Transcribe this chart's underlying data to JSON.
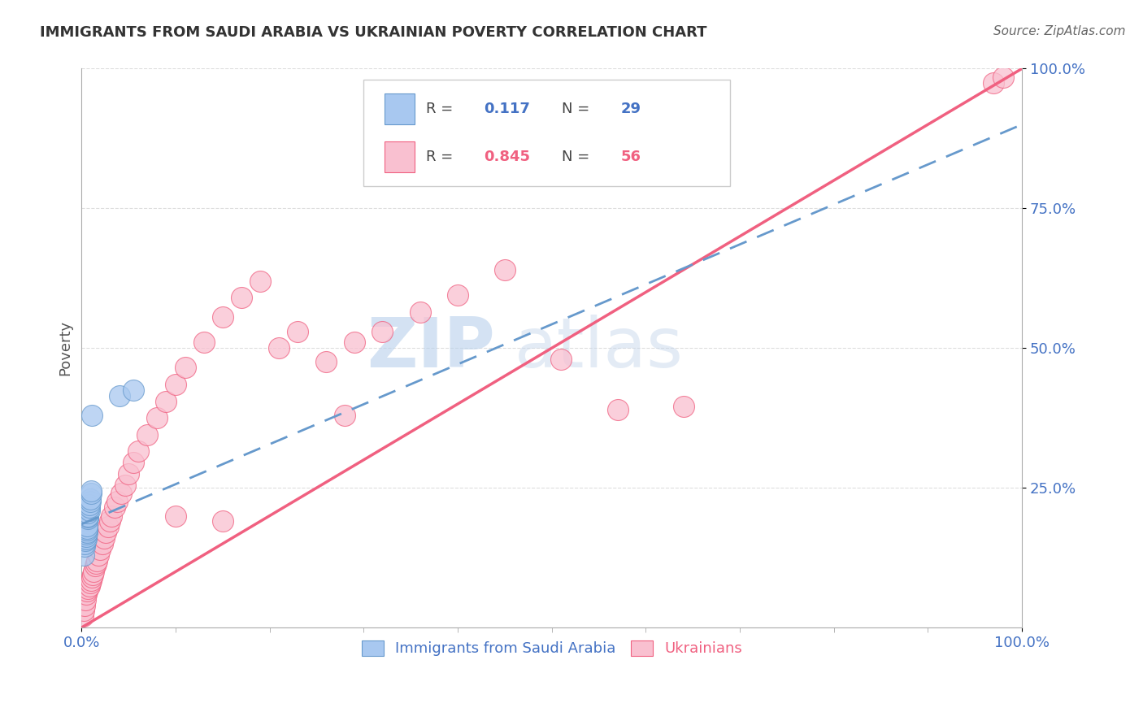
{
  "title": "IMMIGRANTS FROM SAUDI ARABIA VS UKRAINIAN POVERTY CORRELATION CHART",
  "source": "Source: ZipAtlas.com",
  "ylabel": "Poverty",
  "watermark_zip": "ZIP",
  "watermark_atlas": "atlas",
  "legend_r1_val": "0.117",
  "legend_n1_val": "29",
  "legend_r2_val": "0.845",
  "legend_n2_val": "56",
  "series1_label": "Immigrants from Saudi Arabia",
  "series2_label": "Ukrainians",
  "color1": "#A8C8F0",
  "color2": "#F9C0D0",
  "line1_color": "#6699CC",
  "line2_color": "#F06080",
  "background_color": "#FFFFFF",
  "grid_color": "#DDDDDD",
  "tick_color": "#4472C4",
  "title_color": "#333333",
  "source_color": "#666666",
  "ylabel_color": "#555555",
  "xlim": [
    0,
    1
  ],
  "ylim": [
    0,
    1
  ],
  "saudi_x": [
    0.002,
    0.003,
    0.003,
    0.004,
    0.004,
    0.004,
    0.005,
    0.005,
    0.005,
    0.005,
    0.005,
    0.006,
    0.006,
    0.006,
    0.006,
    0.007,
    0.007,
    0.007,
    0.007,
    0.008,
    0.008,
    0.008,
    0.009,
    0.009,
    0.01,
    0.01,
    0.011,
    0.04,
    0.055
  ],
  "saudi_y": [
    0.13,
    0.145,
    0.15,
    0.16,
    0.155,
    0.165,
    0.158,
    0.163,
    0.168,
    0.172,
    0.175,
    0.17,
    0.175,
    0.178,
    0.182,
    0.195,
    0.198,
    0.2,
    0.205,
    0.21,
    0.215,
    0.22,
    0.225,
    0.23,
    0.24,
    0.245,
    0.38,
    0.415,
    0.425
  ],
  "ukraine_x": [
    0.001,
    0.002,
    0.003,
    0.004,
    0.005,
    0.006,
    0.007,
    0.008,
    0.009,
    0.01,
    0.011,
    0.012,
    0.013,
    0.014,
    0.015,
    0.016,
    0.018,
    0.02,
    0.022,
    0.024,
    0.026,
    0.028,
    0.03,
    0.032,
    0.035,
    0.038,
    0.042,
    0.046,
    0.05,
    0.055,
    0.06,
    0.07,
    0.08,
    0.09,
    0.1,
    0.11,
    0.13,
    0.15,
    0.17,
    0.19,
    0.21,
    0.23,
    0.26,
    0.29,
    0.32,
    0.36,
    0.4,
    0.45,
    0.51,
    0.57,
    0.28,
    0.64,
    0.1,
    0.15,
    0.97,
    0.98
  ],
  "ukraine_y": [
    0.02,
    0.03,
    0.04,
    0.05,
    0.06,
    0.065,
    0.07,
    0.075,
    0.08,
    0.085,
    0.09,
    0.095,
    0.1,
    0.11,
    0.115,
    0.12,
    0.13,
    0.14,
    0.15,
    0.16,
    0.17,
    0.18,
    0.19,
    0.2,
    0.215,
    0.225,
    0.24,
    0.255,
    0.275,
    0.295,
    0.315,
    0.345,
    0.375,
    0.405,
    0.435,
    0.465,
    0.51,
    0.555,
    0.59,
    0.62,
    0.5,
    0.53,
    0.475,
    0.51,
    0.53,
    0.565,
    0.595,
    0.64,
    0.48,
    0.39,
    0.38,
    0.395,
    0.2,
    0.19,
    0.975,
    0.985
  ],
  "line1_x0": 0.0,
  "line1_y0": 0.185,
  "line1_x1": 1.0,
  "line1_y1": 0.9,
  "line2_x0": 0.0,
  "line2_y0": 0.0,
  "line2_x1": 1.0,
  "line2_y1": 1.0
}
